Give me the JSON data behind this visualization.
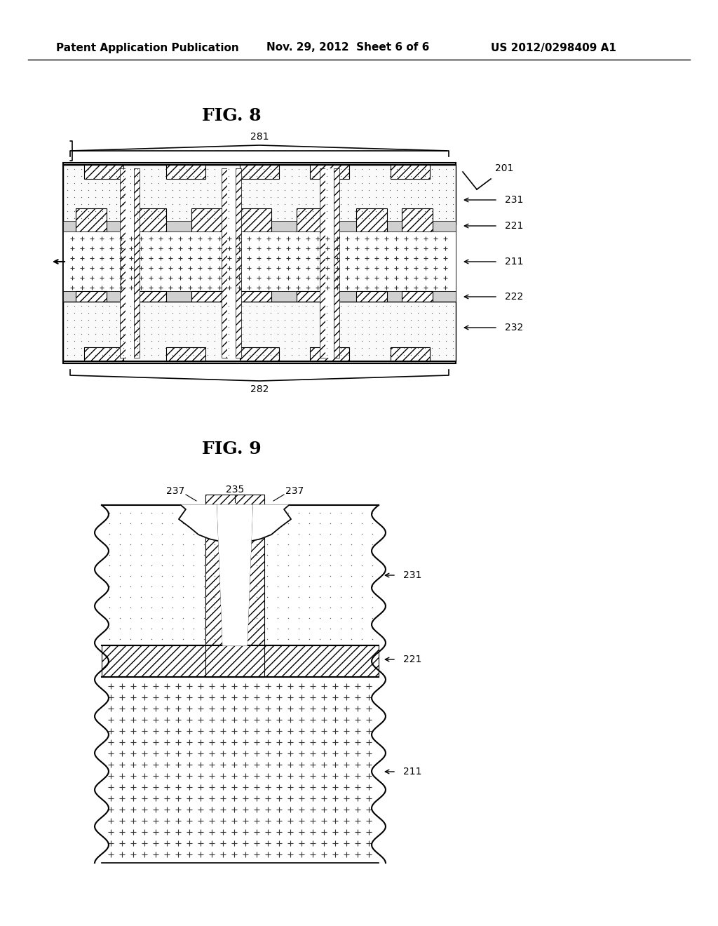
{
  "header_left": "Patent Application Publication",
  "header_mid": "Nov. 29, 2012  Sheet 6 of 6",
  "header_right": "US 2012/0298409 A1",
  "fig8_title": "FIG. 8",
  "fig9_title": "FIG. 9",
  "bg_color": "#ffffff",
  "text_color": "#000000",
  "label_201": "201",
  "label_281": "281",
  "label_282": "282",
  "label_231": "231",
  "label_221": "221",
  "label_211": "211",
  "label_222": "222",
  "label_232": "232",
  "label_235": "235",
  "label_237a": "237",
  "label_237b": "237",
  "label_231b": "231",
  "label_221b": "221",
  "label_211b": "211"
}
